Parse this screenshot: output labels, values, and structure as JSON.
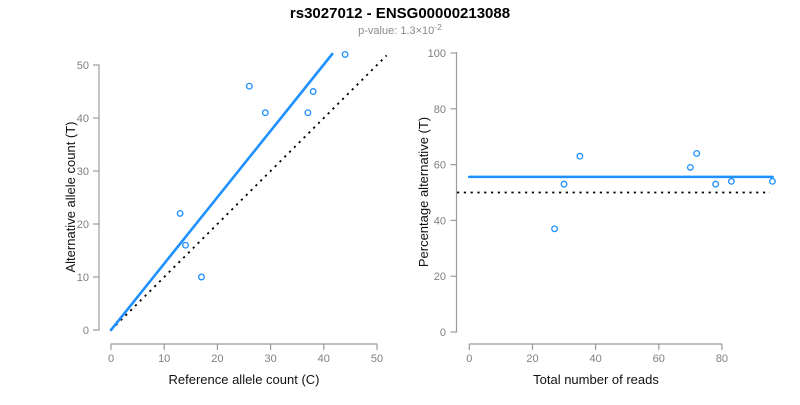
{
  "header": {
    "title": "rs3027012 - ENSG00000213088",
    "subtitle_text": "p-value: 1.3×10",
    "subtitle_exponent": "-2"
  },
  "colors": {
    "accent_blue": "#1E90FF",
    "reference_black": "#000000",
    "axis_gray": "#9b9b9b",
    "tick_label_gray": "#7f7f7f",
    "subtitle_gray": "#8a8a8a"
  },
  "chart_data": [
    {
      "type": "scatter",
      "position": "left",
      "xlabel": "Reference allele count (C)",
      "ylabel": "Alternative allele count (T)",
      "xlim": [
        0,
        50
      ],
      "ylim": [
        0,
        52
      ],
      "xticks": [
        0,
        10,
        20,
        30,
        40,
        50
      ],
      "yticks": [
        0,
        10,
        20,
        30,
        40,
        50
      ],
      "grid": false,
      "legend": "none",
      "marker": "open-circle",
      "points": [
        [
          13,
          22
        ],
        [
          14,
          16
        ],
        [
          17,
          10
        ],
        [
          26,
          46
        ],
        [
          29,
          41
        ],
        [
          37,
          41
        ],
        [
          38,
          45
        ],
        [
          44,
          52
        ]
      ],
      "fit_line": {
        "slope": 1.2523,
        "intercept": 0,
        "style": "solid",
        "color": "#1E90FF"
      },
      "reference_line": {
        "slope": 1,
        "intercept": 0,
        "style": "dotted",
        "color": "#000000"
      }
    },
    {
      "type": "scatter",
      "position": "right",
      "xlabel": "Total number of reads",
      "ylabel": "Percentage alternative (T)",
      "xlim": [
        0,
        100
      ],
      "ylim": [
        0,
        100
      ],
      "xticks": [
        0,
        20,
        40,
        60,
        80
      ],
      "yticks": [
        0,
        20,
        40,
        60,
        80,
        100
      ],
      "grid": false,
      "legend": "none",
      "marker": "open-circle",
      "points": [
        [
          27,
          37
        ],
        [
          30,
          53
        ],
        [
          35,
          63
        ],
        [
          70,
          59
        ],
        [
          72,
          64
        ],
        [
          78,
          53
        ],
        [
          83,
          54
        ],
        [
          96,
          54
        ]
      ],
      "fit_line": {
        "y": 55.6,
        "style": "solid",
        "color": "#1E90FF"
      },
      "reference_line": {
        "y": 50,
        "style": "dotted",
        "color": "#000000"
      }
    }
  ]
}
